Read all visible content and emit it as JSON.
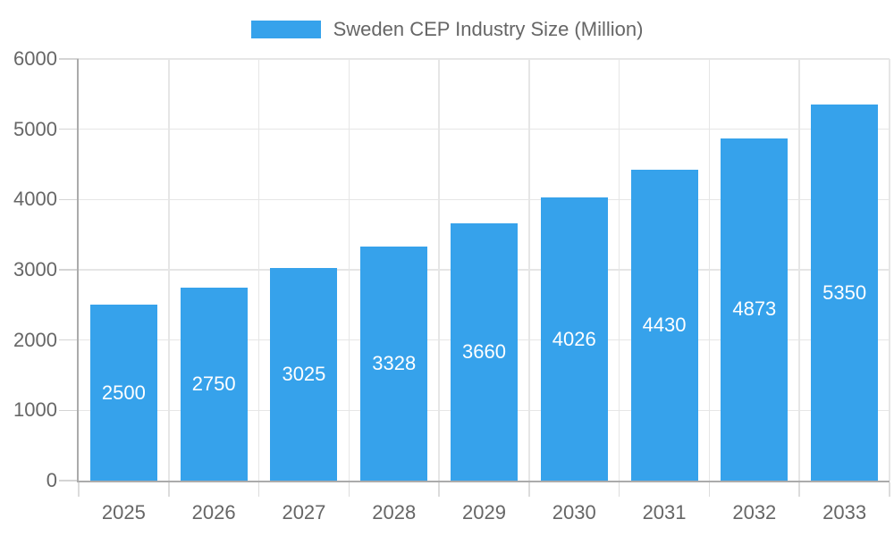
{
  "chart_data": {
    "type": "bar",
    "title": "Sweden CEP Industry Size (Million)",
    "categories": [
      "2025",
      "2026",
      "2027",
      "2028",
      "2029",
      "2030",
      "2031",
      "2032",
      "2033"
    ],
    "series": [
      {
        "name": "Sweden CEP Industry Size (Million)",
        "values": [
          2500,
          2750,
          3025,
          3328,
          3660,
          4026,
          4430,
          4873,
          5350
        ]
      }
    ],
    "xlabel": "",
    "ylabel": "",
    "ylim": [
      0,
      6000
    ],
    "yticks": [
      0,
      1000,
      2000,
      3000,
      4000,
      5000,
      6000
    ],
    "grid": true,
    "legend_position": "top",
    "bar_labels_shown": true,
    "colors": {
      "bar": "#36A2EB",
      "bar_label": "#FFFFFF",
      "axis_text": "#666666",
      "grid_line": "#E6E6E6",
      "axis_line": "#ABABAB",
      "background": "#FFFFFF"
    }
  }
}
